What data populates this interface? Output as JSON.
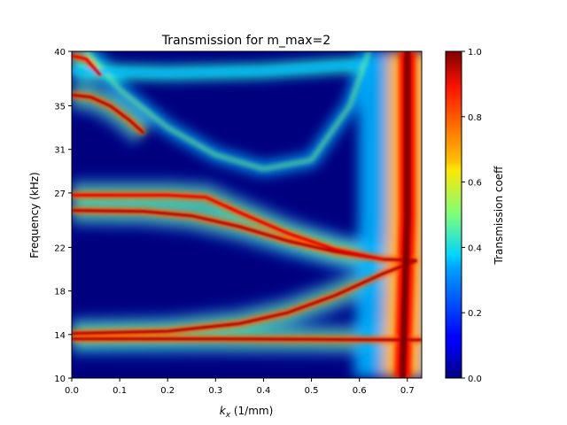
{
  "chart_data": {
    "type": "heatmap",
    "title": "Transmission for m_max=2",
    "xlabel_main": "k",
    "xlabel_sub": "x",
    "xlabel_unit": " (1/mm)",
    "ylabel": "Frequency (kHz)",
    "xlim": [
      0.0,
      0.73
    ],
    "ylim": [
      10,
      40
    ],
    "xticks": [
      0.0,
      0.1,
      0.2,
      0.3,
      0.4,
      0.5,
      0.6,
      0.7
    ],
    "xtick_labels": [
      "0.0",
      "0.1",
      "0.2",
      "0.3",
      "0.4",
      "0.5",
      "0.6",
      "0.7"
    ],
    "yticks": [
      10,
      14,
      18,
      22,
      27,
      31,
      35,
      40
    ],
    "ytick_labels": [
      "10",
      "14",
      "18",
      "22",
      "27",
      "31",
      "35",
      "40"
    ],
    "colormap": "jet",
    "colorbar": {
      "label": "Transmission coeff",
      "range": [
        0.0,
        1.0
      ],
      "ticks": [
        0.0,
        0.2,
        0.4,
        0.6,
        0.8,
        1.0
      ],
      "tick_labels": [
        "0.0",
        "0.2",
        "0.4",
        "0.6",
        "0.8",
        "1.0"
      ]
    },
    "features": [
      {
        "kind": "resonance_line",
        "points": [
          [
            0.0,
            13.6
          ],
          [
            0.3,
            13.6
          ],
          [
            0.5,
            13.55
          ],
          [
            0.7,
            13.5
          ],
          [
            0.73,
            13.5
          ]
        ],
        "value": 0.95
      },
      {
        "kind": "resonance_line",
        "points": [
          [
            0.0,
            14.1
          ],
          [
            0.2,
            14.3
          ],
          [
            0.35,
            15.0
          ],
          [
            0.45,
            16.0
          ],
          [
            0.55,
            17.6
          ],
          [
            0.65,
            19.6
          ],
          [
            0.72,
            20.8
          ]
        ],
        "value": 0.95
      },
      {
        "kind": "resonance_line",
        "points": [
          [
            0.0,
            25.4
          ],
          [
            0.15,
            25.3
          ],
          [
            0.25,
            24.9
          ],
          [
            0.35,
            23.9
          ],
          [
            0.45,
            22.6
          ],
          [
            0.55,
            21.6
          ],
          [
            0.65,
            20.9
          ],
          [
            0.72,
            20.8
          ]
        ],
        "value": 0.95
      },
      {
        "kind": "resonance_line",
        "points": [
          [
            0.0,
            26.8
          ],
          [
            0.2,
            26.8
          ],
          [
            0.28,
            26.6
          ],
          [
            0.35,
            25.2
          ],
          [
            0.45,
            23.3
          ],
          [
            0.55,
            21.8
          ],
          [
            0.65,
            20.9
          ]
        ],
        "value": 0.9
      },
      {
        "kind": "resonance_line",
        "points": [
          [
            0.0,
            36.0
          ],
          [
            0.04,
            35.8
          ],
          [
            0.08,
            35.0
          ],
          [
            0.12,
            33.7
          ],
          [
            0.15,
            32.5
          ]
        ],
        "value": 0.95
      },
      {
        "kind": "resonance_line",
        "points": [
          [
            0.0,
            39.6
          ],
          [
            0.03,
            39.3
          ],
          [
            0.06,
            37.8
          ]
        ],
        "value": 0.9
      },
      {
        "kind": "band_edge_curve",
        "points": [
          [
            0.03,
            40.0
          ],
          [
            0.1,
            36.5
          ],
          [
            0.2,
            33.0
          ],
          [
            0.3,
            30.5
          ],
          [
            0.4,
            29.2
          ],
          [
            0.5,
            30.0
          ],
          [
            0.58,
            35.0
          ],
          [
            0.62,
            40.0
          ]
        ],
        "value": 0.5
      },
      {
        "kind": "band",
        "points": [
          [
            0.0,
            38.2
          ],
          [
            0.2,
            38.0
          ],
          [
            0.4,
            38.2
          ],
          [
            0.6,
            38.8
          ]
        ],
        "value": 0.4
      },
      {
        "kind": "band_edge",
        "points": [
          [
            0.69,
            10.0
          ],
          [
            0.7,
            25.0
          ],
          [
            0.7,
            40.0
          ]
        ],
        "value": 1.0
      }
    ]
  }
}
